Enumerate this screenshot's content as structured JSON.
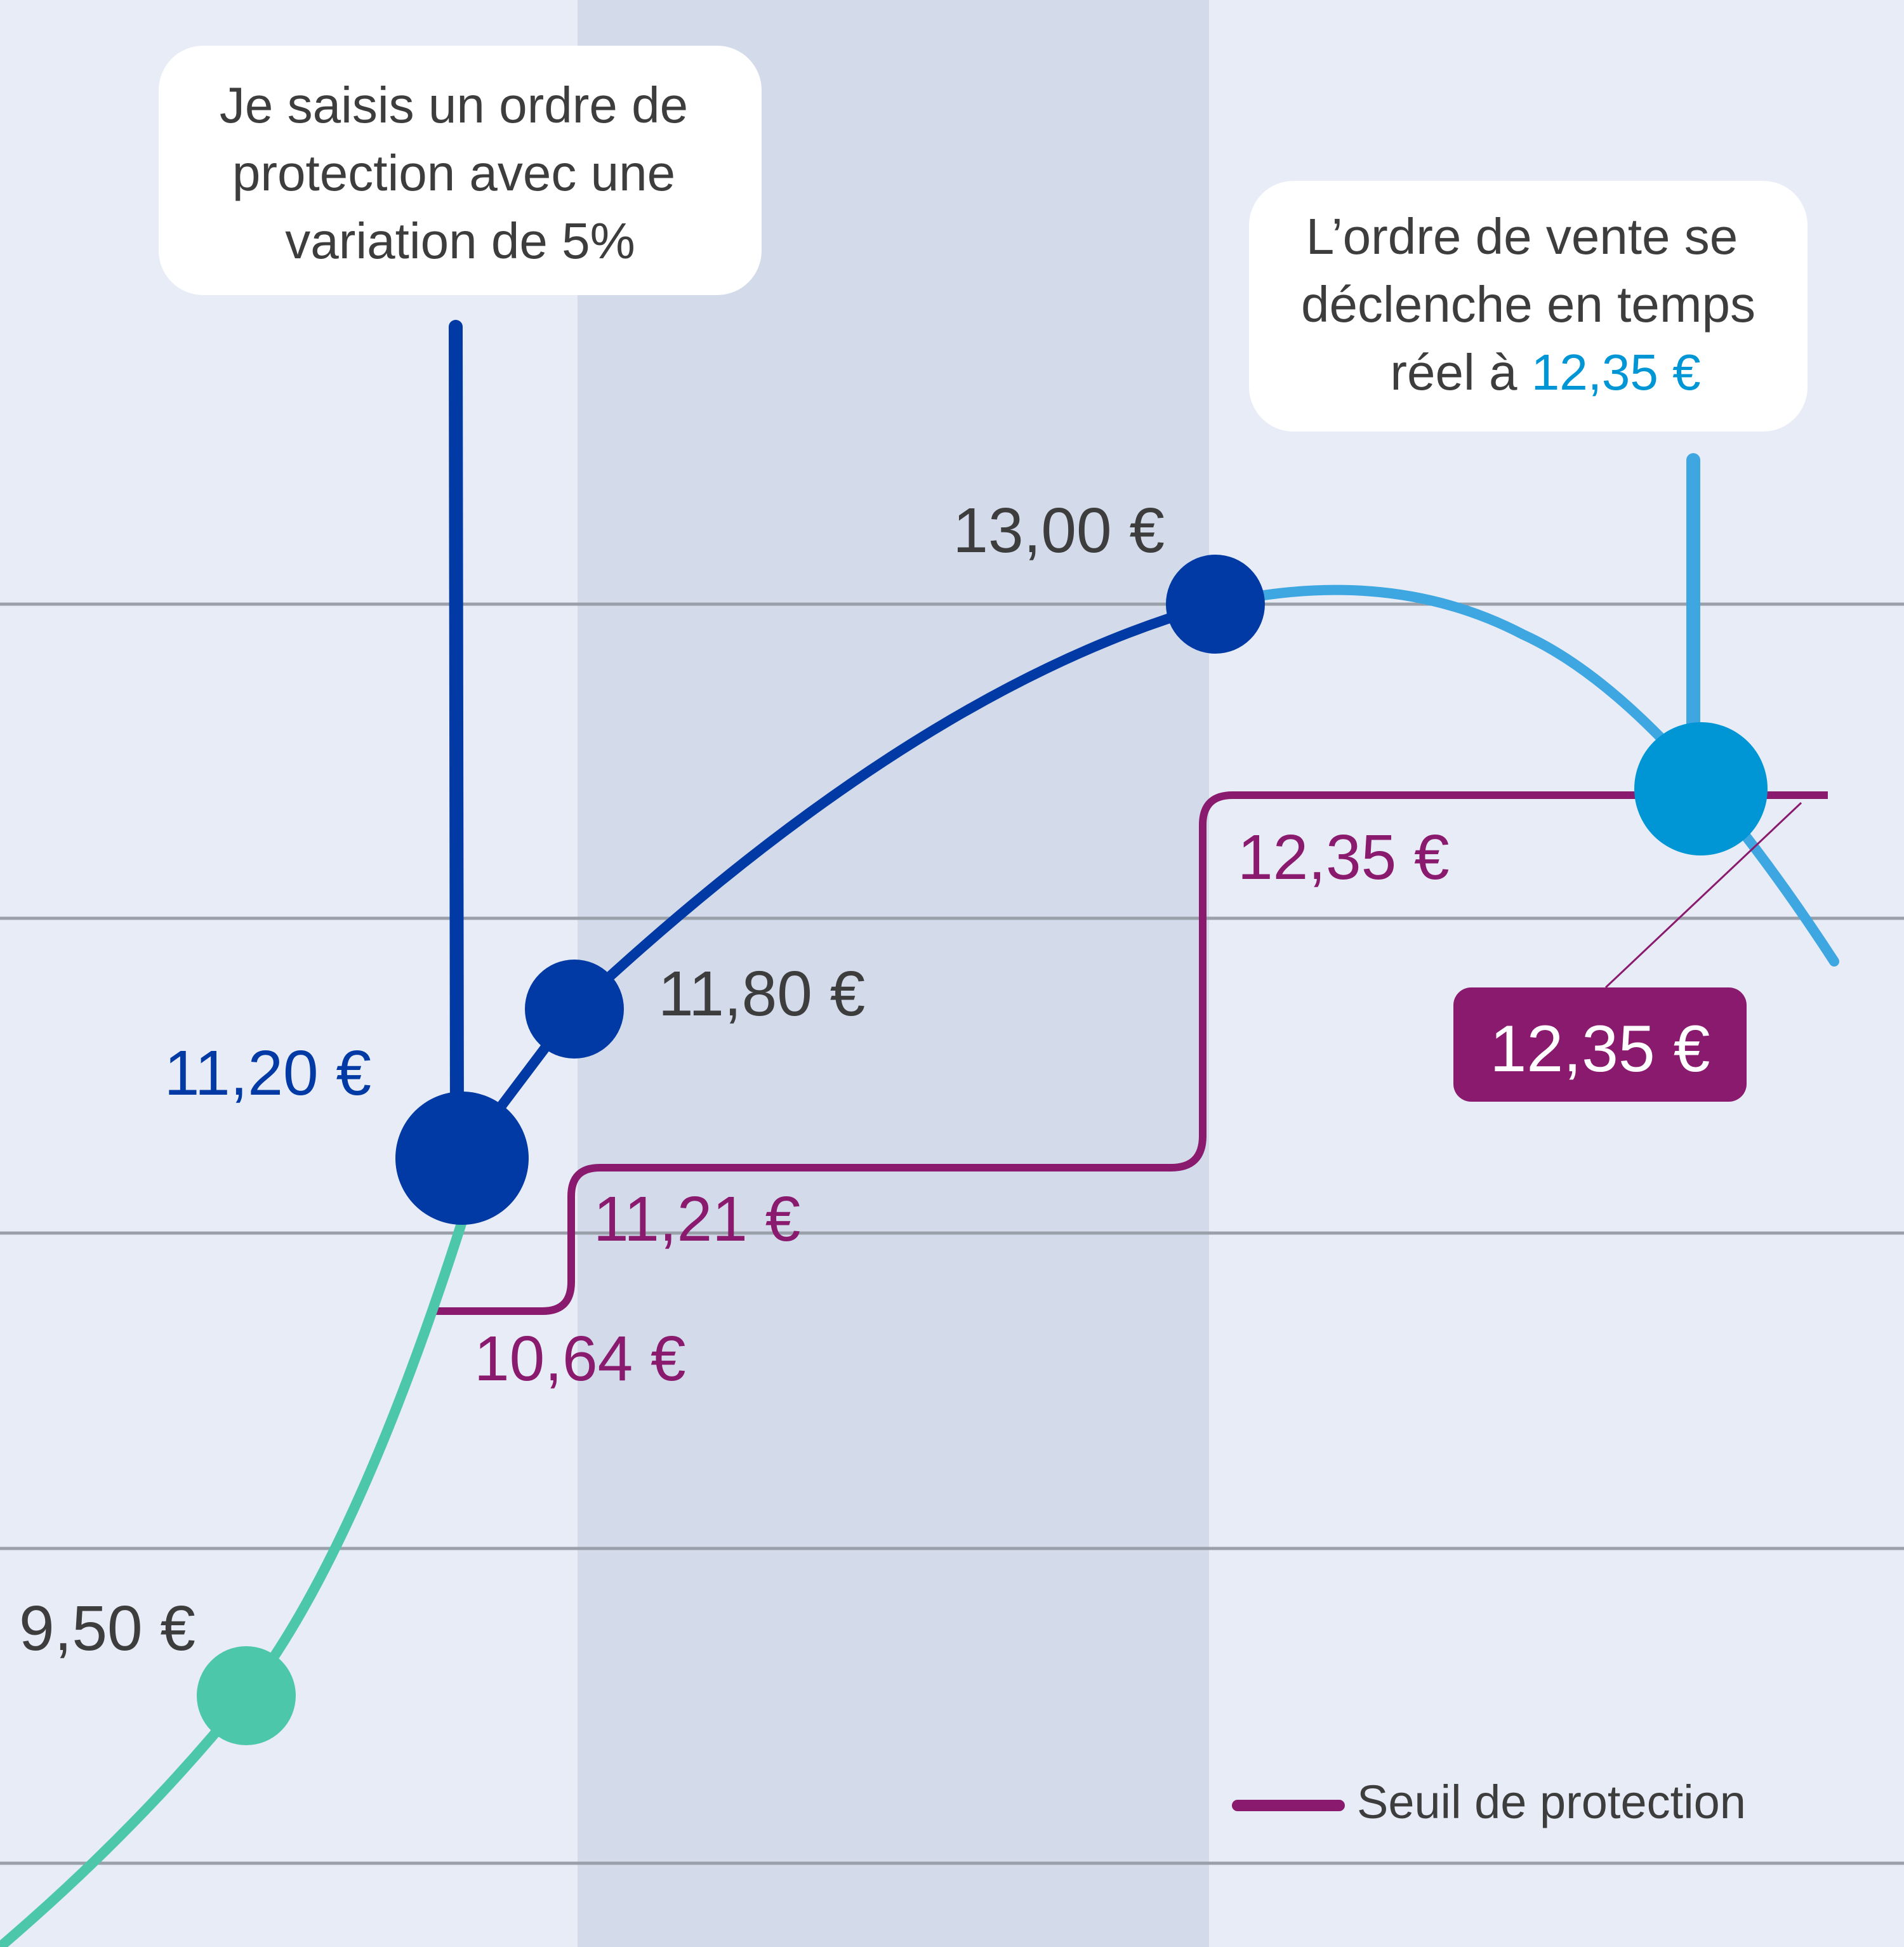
{
  "colors": {
    "background": "#e8ecf6",
    "band": "#d3dbeb",
    "grid": "#9aa0aa",
    "rise": "#4dc7a9",
    "main": "#023aa5",
    "fall": "#3ea7e2",
    "trigger": "#0096d6",
    "threshold": "#8a1a6e",
    "text_dark": "#3d3d3d",
    "callout_bg": "#ffffff"
  },
  "callouts": {
    "order": {
      "lines": [
        "Je saisis un ordre de",
        "protection avec une",
        "variation de 5%"
      ]
    },
    "trigger": {
      "lines": [
        "L’ordre de vente se",
        "déclenche en temps"
      ],
      "line3_prefix": "réel à ",
      "line3_value": "12,35 €"
    }
  },
  "legend": {
    "label": "Seuil de protection"
  },
  "chart_data": {
    "type": "line",
    "title": "",
    "xlabel": "",
    "ylabel": "",
    "grid": true,
    "legend_position": "bottom-right",
    "price_labels": [
      {
        "id": "p950",
        "value": 9.5,
        "text": "9,50 €"
      },
      {
        "id": "p1120",
        "value": 11.2,
        "text": "11,20 €"
      },
      {
        "id": "p1180",
        "value": 11.8,
        "text": "11,80 €"
      },
      {
        "id": "p1300",
        "value": 13.0,
        "text": "13,00 €"
      }
    ],
    "threshold_labels": [
      {
        "id": "t1064",
        "value": 10.64,
        "text": "10,64 €"
      },
      {
        "id": "t1121",
        "value": 11.21,
        "text": "11,21 €"
      },
      {
        "id": "t1235",
        "value": 12.35,
        "text": "12,35 €"
      }
    ],
    "trigger_badge": {
      "value": 12.35,
      "text": "12,35 €"
    },
    "series": [
      {
        "name": "",
        "segment": "rise",
        "points": []
      },
      {
        "name": "",
        "segment": "after-order",
        "points": []
      },
      {
        "name": "",
        "segment": "fall",
        "points": []
      },
      {
        "name": "Seuil de protection",
        "values": [
          10.64,
          11.21,
          12.35
        ]
      }
    ]
  }
}
